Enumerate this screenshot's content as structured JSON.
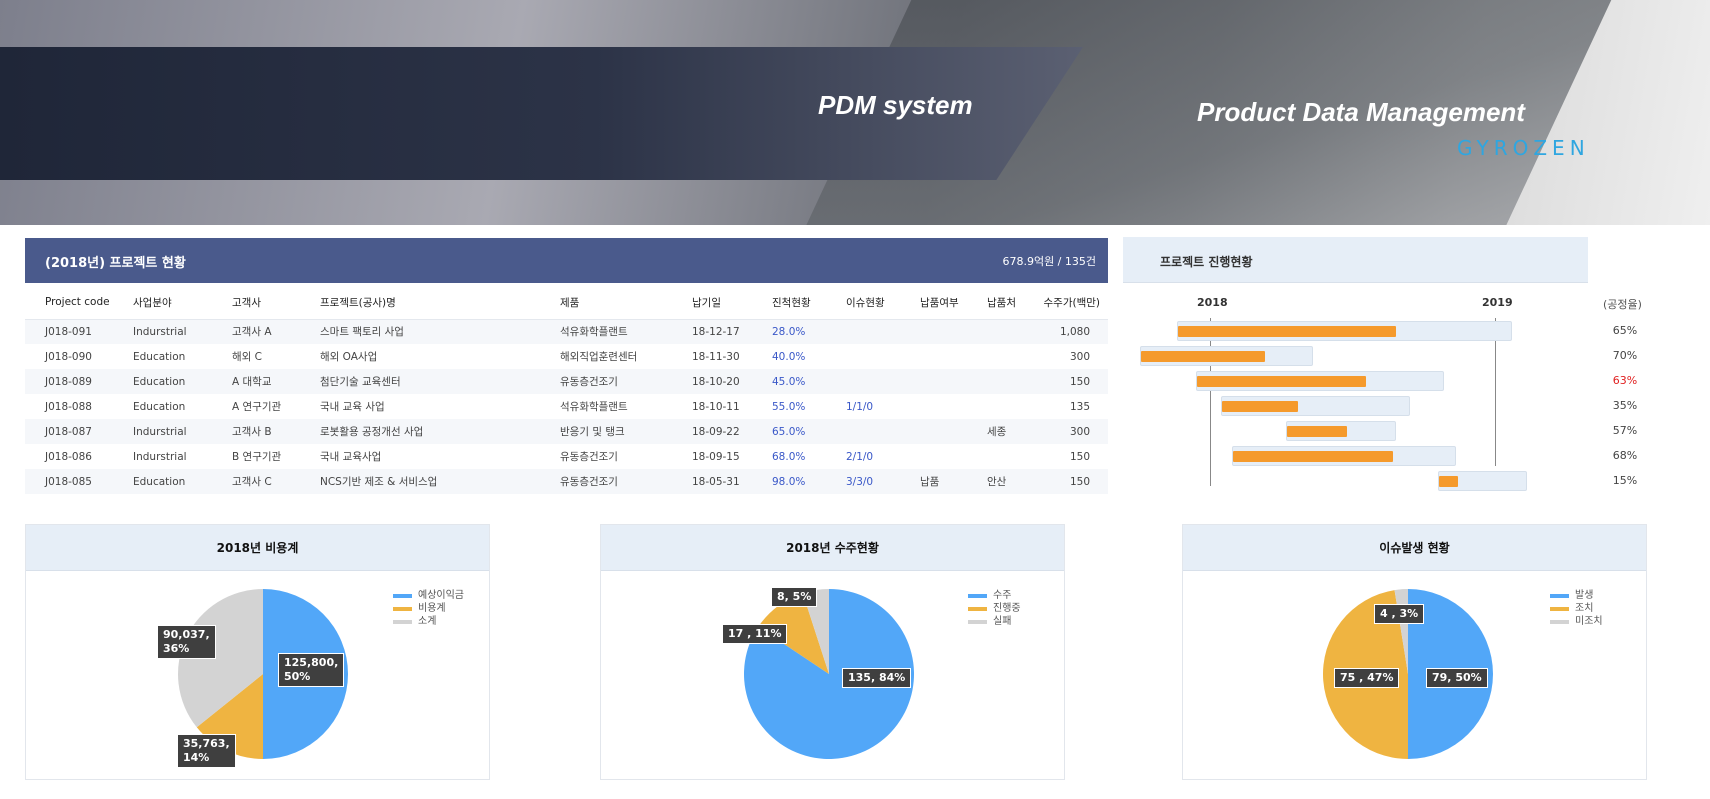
{
  "banner": {
    "title": "PDM system",
    "subtitle": "Product Data Management",
    "logo": "GYROZEN"
  },
  "project_table": {
    "title": "(2018년) 프로젝트 현황",
    "summary": "678.9억원 / 135건",
    "columns": [
      "Project code",
      "사업분야",
      "고객사",
      "프로젝트(공사)명",
      "제품",
      "납기일",
      "진척현황",
      "이슈현황",
      "납품여부",
      "납품처",
      "수주가(백만)"
    ],
    "rows": [
      [
        "J018-091",
        "Indurstrial",
        "고객사 A",
        "스마트 팩토리 사업",
        "석유화학플랜트",
        "18-12-17",
        "28.0%",
        "",
        "",
        "",
        "1,080"
      ],
      [
        "J018-090",
        "Education",
        "해외 C",
        "해외 OA사업",
        "해외직업훈련센터",
        "18-11-30",
        "40.0%",
        "",
        "",
        "",
        "300"
      ],
      [
        "J018-089",
        "Education",
        "A 대학교",
        "첨단기술 교육센터",
        "유동층건조기",
        "18-10-20",
        "45.0%",
        "",
        "",
        "",
        "150"
      ],
      [
        "J018-088",
        "Education",
        "A 연구기관",
        "국내 교육 사업",
        "석유화학플랜트",
        "18-10-11",
        "55.0%",
        "1/1/0",
        "",
        "",
        "135"
      ],
      [
        "J018-087",
        "Indurstrial",
        "고객사 B",
        "로봇활용 공정개선 사업",
        "반응기 및 탱크",
        "18-09-22",
        "65.0%",
        "",
        "",
        "세종",
        "300"
      ],
      [
        "J018-086",
        "Indurstrial",
        "B 연구기관",
        "국내 교육사업",
        "유동층건조기",
        "18-09-15",
        "68.0%",
        "2/1/0",
        "",
        "",
        "150"
      ],
      [
        "J018-085",
        "Education",
        "고객사 C",
        "NCS기반 제조 & 서비스업",
        "유동층건조기",
        "18-05-31",
        "98.0%",
        "3/3/0",
        "납품",
        "안산",
        "150"
      ]
    ]
  },
  "gantt": {
    "title": "프로젝트 진행현황",
    "years": [
      "2018",
      "2019"
    ],
    "rate_header": "(공정율)",
    "rates": [
      "65%",
      "70%",
      "63%",
      "35%",
      "57%",
      "68%",
      "15%"
    ],
    "highlight_color": "#e02020",
    "highlight_index": 2,
    "bar_color": "#f59a2c"
  },
  "chart_data": [
    {
      "type": "pie",
      "title": "2018년 비용계",
      "categories": [
        "예상이익금",
        "비용계",
        "소계"
      ],
      "values": [
        125800,
        35763,
        90037
      ],
      "percents": [
        50,
        14,
        36
      ],
      "labels": [
        "125,800,\n50%",
        "35,763,\n14%",
        "90,037,\n36%"
      ],
      "colors": [
        "#52a7f8",
        "#efb441",
        "#d3d3d3"
      ],
      "legend": "top-right"
    },
    {
      "type": "pie",
      "title": "2018년 수주현황",
      "categories": [
        "수주",
        "진행중",
        "실패"
      ],
      "values": [
        135,
        17,
        8
      ],
      "percents": [
        84,
        11,
        5
      ],
      "labels": [
        "135, 84%",
        "17 , 11%",
        "8, 5%"
      ],
      "colors": [
        "#52a7f8",
        "#efb441",
        "#d3d3d3"
      ],
      "legend": "top-right"
    },
    {
      "type": "pie",
      "title": "이슈발생 현황",
      "categories": [
        "발생",
        "조치",
        "미조치"
      ],
      "values": [
        79,
        75,
        4
      ],
      "percents": [
        50,
        47,
        3
      ],
      "labels": [
        "79, 50%",
        "75 , 47%",
        "4 , 3%"
      ],
      "colors": [
        "#52a7f8",
        "#efb441",
        "#d3d3d3"
      ],
      "legend": "top-right"
    }
  ]
}
